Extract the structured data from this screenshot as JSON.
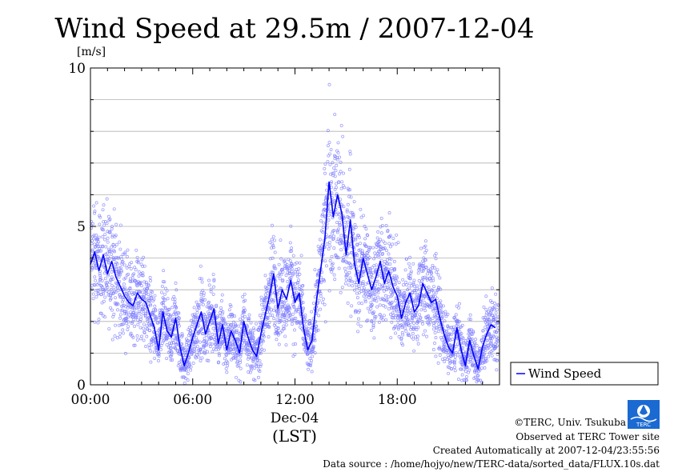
{
  "chart_data": {
    "type": "line",
    "title": "Wind Speed at 29.5m / 2007-12-04",
    "ylabel": "[m/s]",
    "xlabel_date": "Dec-04",
    "xlabel_unit": "(LST)",
    "ylim": [
      0,
      10
    ],
    "xlim_hours": [
      0,
      24
    ],
    "yticks": [
      0,
      5,
      10
    ],
    "ytick_labels": [
      "0",
      "5",
      "10"
    ],
    "xticks_hours": [
      0,
      6,
      12,
      18
    ],
    "xtick_labels": [
      "00:00",
      "06:00",
      "12:00",
      "18:00"
    ],
    "grid": true,
    "legend_position": "right",
    "series": [
      {
        "name": "Wind Speed",
        "color": "#0000ff",
        "x_hours": [
          0.0,
          0.25,
          0.5,
          0.75,
          1.0,
          1.25,
          1.5,
          1.75,
          2.0,
          2.25,
          2.5,
          2.75,
          3.0,
          3.25,
          3.5,
          3.75,
          4.0,
          4.25,
          4.5,
          4.75,
          5.0,
          5.25,
          5.5,
          5.75,
          6.0,
          6.25,
          6.5,
          6.75,
          7.0,
          7.25,
          7.5,
          7.75,
          8.0,
          8.25,
          8.5,
          8.75,
          9.0,
          9.25,
          9.5,
          9.75,
          10.0,
          10.25,
          10.5,
          10.75,
          11.0,
          11.25,
          11.5,
          11.75,
          12.0,
          12.25,
          12.5,
          12.75,
          13.0,
          13.25,
          13.5,
          13.75,
          14.0,
          14.25,
          14.5,
          14.75,
          15.0,
          15.25,
          15.5,
          15.75,
          16.0,
          16.25,
          16.5,
          16.75,
          17.0,
          17.25,
          17.5,
          17.75,
          18.0,
          18.25,
          18.5,
          18.75,
          19.0,
          19.25,
          19.5,
          19.75,
          20.0,
          20.25,
          20.5,
          20.75,
          21.0,
          21.25,
          21.5,
          21.75,
          22.0,
          22.25,
          22.5,
          22.75,
          23.0,
          23.25,
          23.5,
          23.75
        ],
        "values": [
          3.8,
          4.2,
          3.6,
          4.1,
          3.5,
          3.9,
          3.4,
          3.1,
          2.8,
          2.6,
          2.5,
          2.9,
          2.7,
          2.6,
          2.2,
          1.8,
          1.1,
          2.3,
          1.7,
          1.5,
          2.1,
          1.2,
          0.6,
          1.0,
          1.5,
          1.9,
          2.3,
          1.6,
          2.0,
          2.4,
          1.3,
          1.9,
          1.1,
          1.7,
          1.4,
          1.0,
          2.0,
          1.5,
          1.1,
          0.9,
          1.6,
          2.2,
          2.8,
          3.5,
          2.4,
          3.0,
          2.7,
          3.3,
          2.6,
          2.9,
          1.8,
          1.1,
          1.4,
          2.6,
          3.6,
          4.6,
          6.4,
          5.3,
          6.0,
          5.4,
          4.1,
          5.2,
          3.8,
          3.2,
          4.0,
          3.5,
          3.0,
          3.4,
          3.9,
          3.2,
          3.6,
          3.1,
          2.8,
          2.1,
          2.6,
          2.9,
          2.3,
          2.5,
          3.2,
          2.9,
          2.6,
          2.7,
          2.1,
          1.6,
          1.2,
          1.0,
          1.8,
          1.1,
          0.6,
          1.4,
          0.9,
          0.5,
          1.2,
          1.6,
          1.9,
          1.8
        ]
      }
    ]
  },
  "footer": {
    "copyright": "©TERC, Univ. Tsukuba",
    "site": "Observed at TERC Tower site",
    "created": "Created Automatically at 2007-12-04/23:55:56",
    "source": "Data source : /home/hojyo/new/TERC-data/sorted_data/FLUX.10s.dat",
    "logo_text": "TERC"
  }
}
